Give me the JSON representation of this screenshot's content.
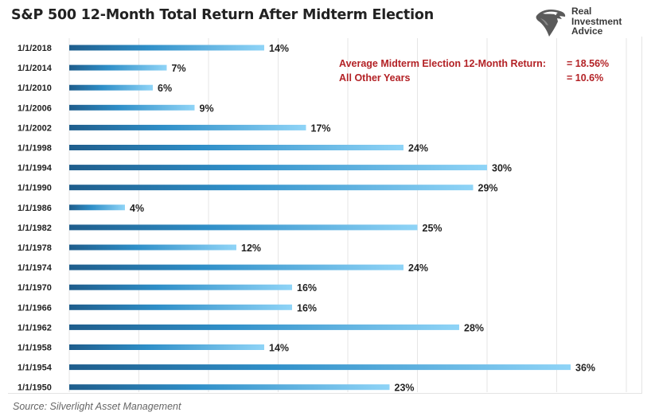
{
  "chart_data": {
    "type": "bar",
    "orientation": "horizontal",
    "title": "S&P 500 12-Month Total Return After Midterm Election",
    "categories": [
      "1/1/2018",
      "1/1/2014",
      "1/1/2010",
      "1/1/2006",
      "1/1/2002",
      "1/1/1998",
      "1/1/1994",
      "1/1/1990",
      "1/1/1986",
      "1/1/1982",
      "1/1/1978",
      "1/1/1974",
      "1/1/1970",
      "1/1/1966",
      "1/1/1962",
      "1/1/1958",
      "1/1/1954",
      "1/1/1950"
    ],
    "values": [
      14,
      7,
      6,
      9,
      17,
      24,
      30,
      29,
      4,
      25,
      12,
      24,
      16,
      16,
      28,
      14,
      36,
      23
    ],
    "value_labels": [
      "14%",
      "7%",
      "6%",
      "9%",
      "17%",
      "24%",
      "30%",
      "29%",
      "4%",
      "25%",
      "12%",
      "24%",
      "16%",
      "16%",
      "28%",
      "14%",
      "36%",
      "23%"
    ],
    "xlim": [
      0,
      40
    ],
    "gridlines": "vertical",
    "bar_gradient": [
      "#1e5d8c",
      "#2f8fc8",
      "#8fd4f7"
    ]
  },
  "annotations": {
    "line1_label": "Average Midterm Election 12-Month Return:",
    "line1_value": "= 18.56%",
    "line2_label": "All Other Years",
    "line2_value": "= 10.6%",
    "color": "#b32226"
  },
  "logo": {
    "icon": "eagle-head-icon",
    "line1": "Real",
    "line2": "Investment",
    "line3": "Advice"
  },
  "source": "Source: Silverlight Asset Management"
}
